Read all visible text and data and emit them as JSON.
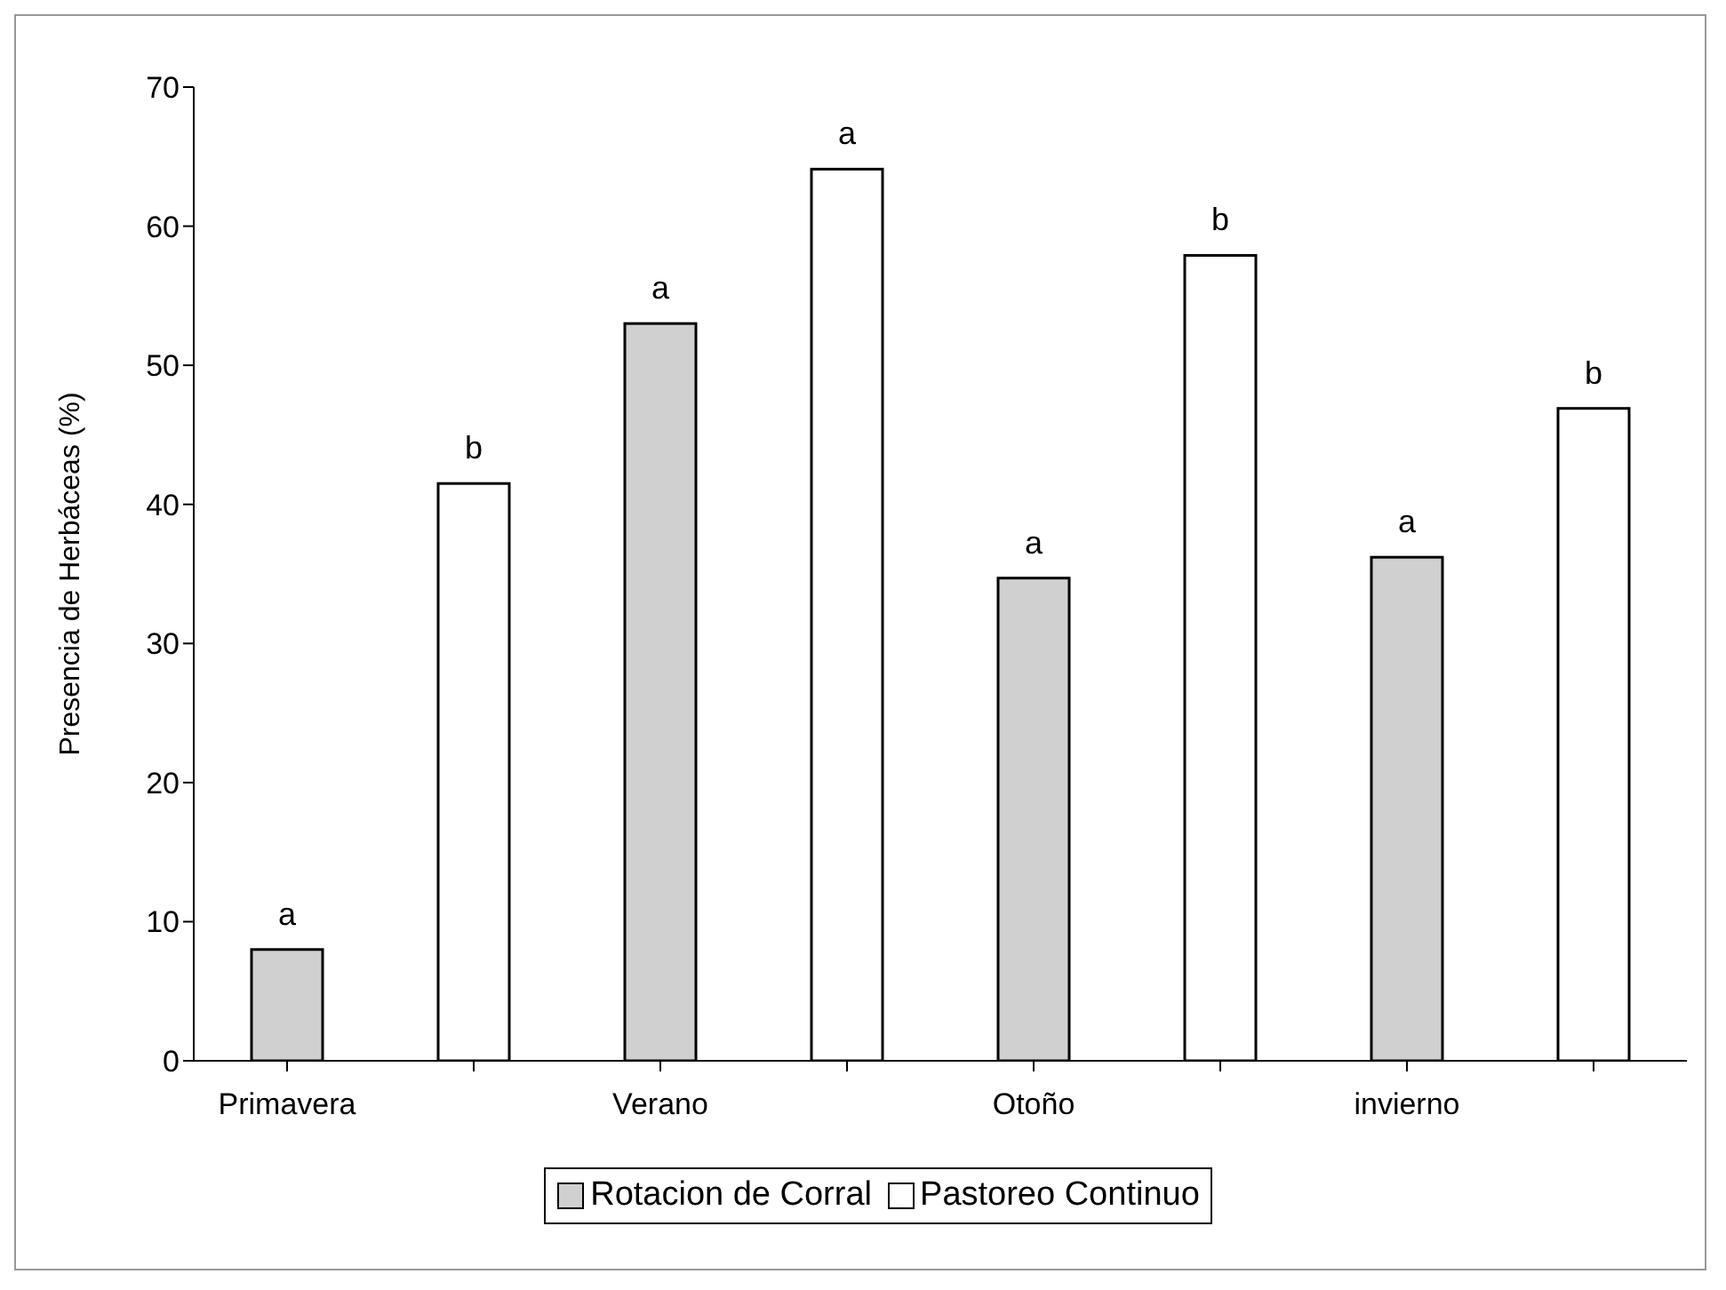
{
  "chart_data": {
    "type": "bar",
    "stacked": true,
    "ylabel": "Presencia de Herbáceas (%)",
    "categories": [
      "Primavera",
      null,
      "Verano",
      null,
      "Otoño",
      null,
      "invierno",
      null
    ],
    "series": [
      {
        "name": "Rotacion de Corral",
        "color": "#d0d0d0",
        "values": [
          8,
          null,
          53,
          null,
          34.7,
          null,
          36.2,
          null
        ],
        "value_labels": [
          "a",
          null,
          "a",
          null,
          "a",
          null,
          "a",
          null
        ]
      },
      {
        "name": "Pastoreo Continuo",
        "color": "#ffffff",
        "values": [
          null,
          41.5,
          null,
          64.1,
          null,
          57.9,
          null,
          46.9
        ],
        "value_labels": [
          null,
          "b",
          null,
          "a",
          null,
          "b",
          null,
          "b"
        ]
      }
    ],
    "ylim": [
      0,
      70
    ],
    "yticks": [
      0,
      10,
      20,
      30,
      40,
      50,
      60,
      70
    ],
    "grid": false,
    "legend": "bottom"
  }
}
